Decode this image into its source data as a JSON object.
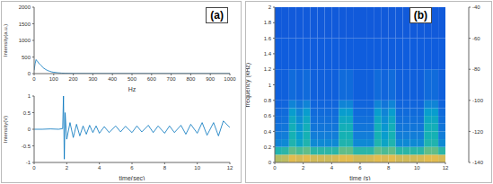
{
  "chart_data": [
    {
      "type": "line",
      "title": "(a)",
      "x_label": "Hz",
      "y_label": "Intensity(a.u.)",
      "color": "#0072bd",
      "x": [
        0,
        5,
        10,
        15,
        20,
        25,
        30,
        35,
        40,
        45,
        50,
        60,
        70,
        80,
        90,
        100,
        120,
        140,
        160,
        200,
        300,
        400,
        500,
        600,
        700,
        800,
        900,
        1000
      ],
      "values": [
        100,
        300,
        420,
        380,
        350,
        300,
        280,
        250,
        220,
        180,
        160,
        120,
        90,
        70,
        50,
        40,
        25,
        15,
        10,
        5,
        3,
        2,
        2,
        1,
        1,
        1,
        1,
        1
      ],
      "xlim": [
        0,
        1000
      ],
      "xticks": [
        0,
        100,
        200,
        300,
        400,
        500,
        600,
        700,
        800,
        900,
        1000
      ],
      "ylim": [
        0,
        2000
      ],
      "yticks": [
        0,
        500,
        1000,
        1500,
        2000
      ]
    },
    {
      "type": "line",
      "x_label": "time(sec)",
      "y_label": "Intensity(V)",
      "color": "#0072bd",
      "x": [
        0,
        0.5,
        1,
        1.5,
        1.75,
        1.8,
        1.85,
        1.9,
        2,
        2.2,
        2.4,
        2.6,
        2.8,
        3,
        3.2,
        3.4,
        3.6,
        3.8,
        4,
        4.3,
        4.6,
        5,
        5.3,
        5.6,
        6,
        6.3,
        6.6,
        7,
        7.3,
        7.6,
        8,
        8.3,
        8.6,
        9,
        9.3,
        9.6,
        10,
        10.3,
        10.6,
        11,
        11.3,
        11.6,
        12
      ],
      "values": [
        0,
        0,
        0.01,
        0,
        0.02,
        1,
        -0.9,
        0.5,
        -0.3,
        0.2,
        -0.25,
        0.15,
        -0.2,
        0.1,
        -0.15,
        0.12,
        -0.1,
        0.1,
        -0.12,
        0.08,
        -0.1,
        0.1,
        -0.08,
        0.09,
        -0.1,
        0.1,
        -0.08,
        0.12,
        -0.1,
        0.1,
        -0.12,
        0.1,
        -0.1,
        0.12,
        -0.15,
        0.15,
        -0.12,
        0.2,
        -0.18,
        0.2,
        -0.2,
        0.25,
        0.05
      ],
      "xlim": [
        0,
        12
      ],
      "xticks": [
        0,
        2,
        4,
        6,
        8,
        10,
        12
      ],
      "ylim": [
        -1,
        1
      ],
      "yticks": [
        -1,
        -0.5,
        0,
        0.5,
        1
      ]
    },
    {
      "type": "heatmap",
      "title": "(b)",
      "x_label": "time (s)",
      "y_label": "frequency (kHz)",
      "xlim": [
        0,
        12
      ],
      "xticks": [
        0,
        2,
        4,
        6,
        8,
        10,
        12
      ],
      "ylim": [
        0,
        2
      ],
      "yticks": [
        0,
        0.2,
        0.4,
        0.6,
        0.8,
        1,
        1.2,
        1.4,
        1.6,
        1.8,
        2
      ],
      "cells": {
        "x_edges": [
          0,
          0.5,
          1,
          1.5,
          2,
          2.5,
          3,
          3.5,
          4,
          4.5,
          5,
          5.5,
          6,
          6.5,
          7,
          7.5,
          8,
          8.5,
          9,
          9.5,
          10,
          10.5,
          11,
          11.5,
          12
        ],
        "y_edges": [
          0,
          0.1,
          0.2,
          0.3,
          0.4,
          0.5,
          0.6,
          0.7,
          0.8,
          1.2,
          1.6,
          2
        ],
        "values": [
          [
            -62,
            -60,
            -52,
            -55,
            -52,
            -56,
            -56,
            -57,
            -55,
            -52,
            -52,
            -56,
            -56,
            -55,
            -52,
            -54,
            -52,
            -56,
            -56,
            -56,
            -55,
            -52,
            -52,
            -55
          ],
          [
            -88,
            -86,
            -76,
            -80,
            -76,
            -86,
            -86,
            -86,
            -86,
            -76,
            -76,
            -86,
            -86,
            -86,
            -76,
            -80,
            -76,
            -86,
            -86,
            -86,
            -86,
            -76,
            -76,
            -86
          ],
          [
            -112,
            -110,
            -88,
            -98,
            -88,
            -110,
            -110,
            -110,
            -110,
            -88,
            -88,
            -110,
            -110,
            -110,
            -88,
            -98,
            -88,
            -110,
            -110,
            -110,
            -110,
            -88,
            -88,
            -110
          ],
          [
            -116,
            -115,
            -90,
            -102,
            -90,
            -115,
            -115,
            -115,
            -115,
            -90,
            -90,
            -115,
            -115,
            -115,
            -90,
            -102,
            -90,
            -115,
            -115,
            -115,
            -115,
            -90,
            -90,
            -115
          ],
          [
            -119,
            -118,
            -92,
            -105,
            -92,
            -118,
            -118,
            -118,
            -118,
            -92,
            -92,
            -118,
            -118,
            -118,
            -92,
            -105,
            -92,
            -118,
            -118,
            -118,
            -118,
            -92,
            -92,
            -118
          ],
          [
            -121,
            -120,
            -96,
            -108,
            -96,
            -120,
            -120,
            -120,
            -120,
            -96,
            -96,
            -120,
            -120,
            -120,
            -96,
            -108,
            -96,
            -120,
            -120,
            -120,
            -120,
            -96,
            -96,
            -120
          ],
          [
            -123,
            -122,
            -102,
            -112,
            -102,
            -122,
            -122,
            -122,
            -122,
            -102,
            -102,
            -122,
            -122,
            -122,
            -102,
            -112,
            -102,
            -122,
            -122,
            -122,
            -122,
            -102,
            -102,
            -122
          ],
          [
            -125,
            -124,
            -112,
            -118,
            -112,
            -124,
            -124,
            -124,
            -124,
            -112,
            -112,
            -124,
            -124,
            -124,
            -112,
            -118,
            -112,
            -124,
            -124,
            -124,
            -124,
            -112,
            -112,
            -124
          ],
          [
            -126,
            -126,
            -122,
            -124,
            -122,
            -126,
            -126,
            -126,
            -126,
            -122,
            -122,
            -126,
            -126,
            -126,
            -122,
            -124,
            -122,
            -126,
            -126,
            -126,
            -126,
            -122,
            -122,
            -126
          ],
          [
            -127,
            -127,
            -127,
            -127,
            -127,
            -127,
            -127,
            -127,
            -127,
            -127,
            -127,
            -127,
            -127,
            -127,
            -127,
            -127,
            -127,
            -127,
            -127,
            -127,
            -127,
            -127,
            -127,
            -127
          ],
          [
            -128,
            -128,
            -128,
            -128,
            -128,
            -128,
            -128,
            -128,
            -128,
            -128,
            -128,
            -128,
            -128,
            -128,
            -128,
            -128,
            -128,
            -128,
            -128,
            -128,
            -128,
            -128,
            -128,
            -128
          ]
        ]
      },
      "colorbar": {
        "range": [
          -140,
          -40
        ],
        "ticks": [
          -140,
          -120,
          -100,
          -80,
          -60,
          -40
        ]
      }
    }
  ]
}
